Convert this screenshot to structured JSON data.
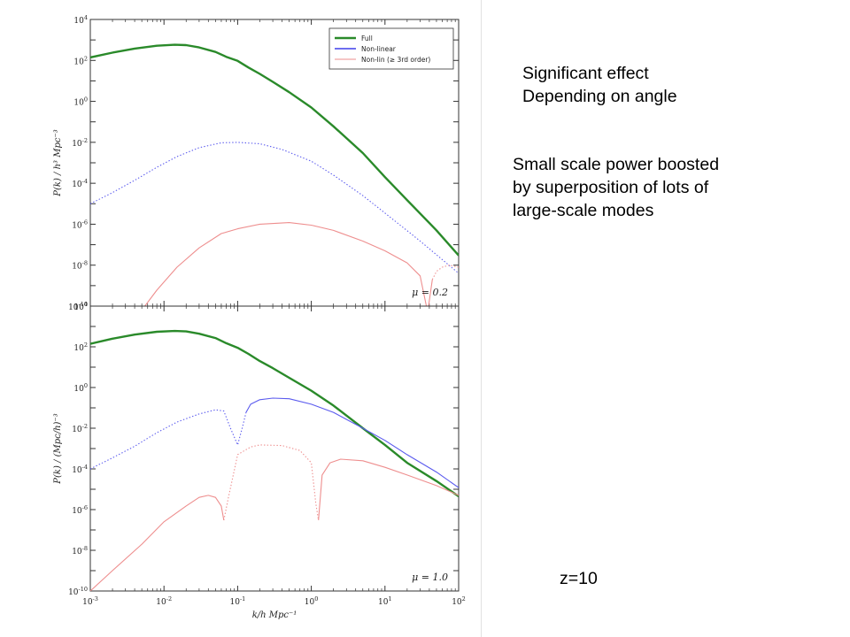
{
  "notes": {
    "line1": "Significant effect",
    "line2": "Depending on angle",
    "line3": "Small scale power boosted",
    "line4": "by superposition of lots of",
    "line5": "large-scale modes",
    "redshift": "z=10"
  },
  "chart_data": [
    {
      "type": "line",
      "xscale": "log",
      "yscale": "log",
      "xlim": [
        0.001,
        100
      ],
      "ylim": [
        1e-10,
        10000
      ],
      "xlabel": "",
      "ylabel": "P(k) / h³ Mpc⁻³",
      "annotation": "μ = 0.2",
      "legend": {
        "position": "top-right",
        "entries": [
          "Full",
          "Non-linear",
          "Non-lin (≥ 3rd order)"
        ]
      },
      "colors": {
        "full": "#2a8a2a",
        "nonlinear": "#5a5aee",
        "nonlin3": "#ee8e8e"
      },
      "series": [
        {
          "name": "Full",
          "style": "solid",
          "points": [
            [
              0.001,
              140
            ],
            [
              0.002,
              240
            ],
            [
              0.004,
              380
            ],
            [
              0.008,
              520
            ],
            [
              0.014,
              580
            ],
            [
              0.02,
              560
            ],
            [
              0.03,
              430
            ],
            [
              0.05,
              260
            ],
            [
              0.07,
              150
            ],
            [
              0.1,
              95
            ],
            [
              0.14,
              45
            ],
            [
              0.2,
              22
            ],
            [
              0.3,
              9
            ],
            [
              0.5,
              2.8
            ],
            [
              1,
              0.5
            ],
            [
              2,
              0.06
            ],
            [
              5,
              0.003
            ],
            [
              10,
              0.0002
            ],
            [
              20,
              1.5e-05
            ],
            [
              50,
              5e-07
            ],
            [
              100,
              3e-08
            ]
          ]
        },
        {
          "name": "Non-linear",
          "style": "dotted",
          "points": [
            [
              0.001,
              1e-05
            ],
            [
              0.002,
              3.5e-05
            ],
            [
              0.004,
              0.00014
            ],
            [
              0.008,
              0.0006
            ],
            [
              0.015,
              0.002
            ],
            [
              0.03,
              0.0055
            ],
            [
              0.06,
              0.0095
            ],
            [
              0.1,
              0.01
            ],
            [
              0.2,
              0.0085
            ],
            [
              0.4,
              0.0045
            ],
            [
              1,
              0.0012
            ],
            [
              2,
              0.00025
            ],
            [
              5,
              2.5e-05
            ],
            [
              10,
              3.5e-06
            ],
            [
              30,
              1.5e-07
            ],
            [
              100,
              4e-09
            ]
          ]
        },
        {
          "name": "Non-lin (≥ 3rd order)",
          "style": "solid",
          "points": [
            [
              0.0055,
              1e-10
            ],
            [
              0.008,
              6e-10
            ],
            [
              0.015,
              8e-09
            ],
            [
              0.03,
              7e-08
            ],
            [
              0.06,
              3.5e-07
            ],
            [
              0.1,
              6e-07
            ],
            [
              0.2,
              1e-06
            ],
            [
              0.5,
              1.2e-06
            ],
            [
              1,
              9e-07
            ],
            [
              2,
              5e-07
            ],
            [
              5,
              1.5e-07
            ],
            [
              10,
              5e-08
            ],
            [
              20,
              1.3e-08
            ],
            [
              30,
              3e-09
            ],
            [
              38,
              5e-11
            ],
            [
              44,
              2e-09
            ]
          ]
        },
        {
          "name": "Non-lin (≥ 3rd order)",
          "style": "dotted",
          "points": [
            [
              44,
              2e-09
            ],
            [
              50,
              5e-09
            ],
            [
              60,
              8e-09
            ],
            [
              75,
              1e-08
            ],
            [
              100,
              8e-09
            ]
          ]
        }
      ]
    },
    {
      "type": "line",
      "xscale": "log",
      "yscale": "log",
      "xlim": [
        0.001,
        100
      ],
      "ylim": [
        1e-10,
        10000
      ],
      "xlabel": "k/h Mpc⁻¹",
      "ylabel": "P(k) / (Mpc/h)⁻³",
      "annotation": "μ = 1.0",
      "series": [
        {
          "name": "Full",
          "style": "solid",
          "points": [
            [
              0.001,
              140
            ],
            [
              0.002,
              250
            ],
            [
              0.004,
              400
            ],
            [
              0.008,
              550
            ],
            [
              0.014,
              600
            ],
            [
              0.02,
              570
            ],
            [
              0.03,
              440
            ],
            [
              0.05,
              270
            ],
            [
              0.07,
              150
            ],
            [
              0.1,
              90
            ],
            [
              0.14,
              45
            ],
            [
              0.2,
              20
            ],
            [
              0.3,
              9
            ],
            [
              0.5,
              3
            ],
            [
              1,
              0.7
            ],
            [
              2,
              0.13
            ],
            [
              5,
              0.01
            ],
            [
              10,
              0.0015
            ],
            [
              20,
              0.0002
            ],
            [
              50,
              2.5e-05
            ],
            [
              100,
              4.5e-06
            ]
          ]
        },
        {
          "name": "Non-linear",
          "style": "dotted",
          "points": [
            [
              0.001,
              0.0001
            ],
            [
              0.002,
              0.00035
            ],
            [
              0.004,
              0.0013
            ],
            [
              0.008,
              0.006
            ],
            [
              0.015,
              0.02
            ],
            [
              0.03,
              0.05
            ],
            [
              0.05,
              0.08
            ],
            [
              0.065,
              0.07
            ],
            [
              0.08,
              0.01
            ],
            [
              0.1,
              0.0015
            ],
            [
              0.115,
              0.01
            ],
            [
              0.13,
              0.06
            ]
          ]
        },
        {
          "name": "Non-linear",
          "style": "solid",
          "points": [
            [
              0.13,
              0.06
            ],
            [
              0.15,
              0.15
            ],
            [
              0.2,
              0.25
            ],
            [
              0.3,
              0.3
            ],
            [
              0.5,
              0.28
            ],
            [
              1,
              0.15
            ],
            [
              2,
              0.06
            ],
            [
              5,
              0.01
            ],
            [
              10,
              0.0025
            ],
            [
              20,
              0.0005
            ],
            [
              50,
              7e-05
            ],
            [
              100,
              1.2e-05
            ]
          ]
        },
        {
          "name": "Non-lin (≥ 3rd order)",
          "style": "solid",
          "points": [
            [
              0.001,
              1e-10
            ],
            [
              0.002,
              1e-09
            ],
            [
              0.005,
              2e-08
            ],
            [
              0.01,
              2.5e-07
            ],
            [
              0.02,
              1.5e-06
            ],
            [
              0.03,
              4e-06
            ],
            [
              0.04,
              5e-06
            ],
            [
              0.05,
              4e-06
            ],
            [
              0.06,
              1.5e-06
            ],
            [
              0.065,
              3e-07
            ]
          ]
        },
        {
          "name": "Non-lin (≥ 3rd order)",
          "style": "dotted",
          "points": [
            [
              0.065,
              3e-07
            ],
            [
              0.075,
              4e-06
            ],
            [
              0.1,
              0.0005
            ],
            [
              0.15,
              0.0012
            ],
            [
              0.2,
              0.0015
            ],
            [
              0.4,
              0.0014
            ],
            [
              0.7,
              0.0008
            ],
            [
              1,
              0.0002
            ],
            [
              1.15,
              2e-06
            ],
            [
              1.25,
              3e-07
            ]
          ]
        },
        {
          "name": "Non-lin (≥ 3rd order)",
          "style": "solid",
          "points": [
            [
              1.25,
              3e-07
            ],
            [
              1.4,
              5e-05
            ],
            [
              1.8,
              0.0002
            ],
            [
              2.5,
              0.0003
            ],
            [
              5,
              0.00025
            ],
            [
              10,
              0.00012
            ],
            [
              20,
              5e-05
            ],
            [
              50,
              1.5e-05
            ],
            [
              100,
              5e-06
            ]
          ]
        }
      ]
    }
  ]
}
